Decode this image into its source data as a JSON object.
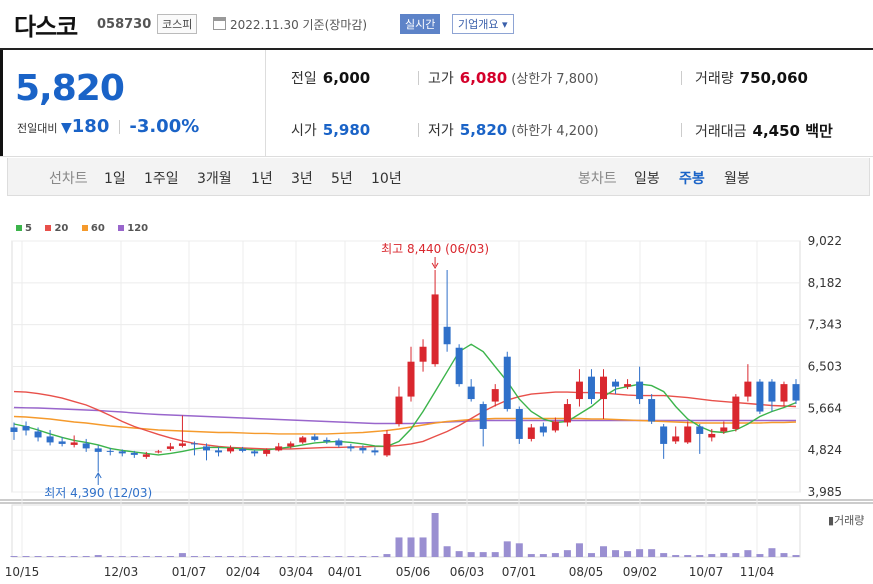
{
  "header": {
    "company_name": "다스코",
    "stock_code": "058730",
    "market_badge": "코스피",
    "date_text": "2022.11.30  기준(장마감)",
    "realtime_badge": "실시간",
    "company_info_button": "기업개요 ▾"
  },
  "summary": {
    "current_price": "5,820",
    "change_label": "전일대비",
    "change_arrow": "▼",
    "change_value": "180",
    "change_percent": "-3.00%",
    "prev_close_label": "전일",
    "prev_close": "6,000",
    "open_label": "시가",
    "open": "5,980",
    "high_label": "고가",
    "high": "6,080",
    "upper_limit": "(상한가 7,800)",
    "low_label": "저가",
    "low": "5,820",
    "lower_limit": "(하한가 4,200)",
    "volume_label": "거래량",
    "volume": "750,060",
    "trade_value_label": "거래대금",
    "trade_value": "4,450 백만"
  },
  "toolbar": {
    "line_chart_label": "선차트",
    "periods": [
      "1일",
      "1주일",
      "3개월",
      "1년",
      "3년",
      "5년",
      "10년"
    ],
    "candle_chart_label": "봉차트",
    "candle_periods": [
      "일봉",
      "주봉",
      "월봉"
    ],
    "selected_candle_period": "주봉"
  },
  "colors": {
    "ma5": "#3cb44b",
    "ma20": "#e8504a",
    "ma60": "#f59a2c",
    "ma120": "#9966cc",
    "up": "#d9272e",
    "down": "#2f70c9"
  },
  "chart_data": {
    "type": "candlestick",
    "legend": [
      "5",
      "20",
      "60",
      "120"
    ],
    "y_ticks": [
      "9,022",
      "8,182",
      "7,343",
      "6,503",
      "5,664",
      "4,824",
      "3,985"
    ],
    "ylim": [
      3985,
      9022
    ],
    "x_ticks": [
      "10/15",
      "12/03",
      "01/07",
      "02/04",
      "03/04",
      "04/01",
      "05/06",
      "06/03",
      "07/01",
      "08/05",
      "09/02",
      "10/07",
      "11/04"
    ],
    "annotations": {
      "max": "최고 8,440 (06/03)",
      "min": "최저 4,390 (12/03)"
    },
    "volume_label": "거래량",
    "candles": [
      {
        "o": 5280,
        "c": 5190,
        "h": 5380,
        "l": 5030
      },
      {
        "o": 5310,
        "c": 5220,
        "h": 5400,
        "l": 5120
      },
      {
        "o": 5200,
        "c": 5080,
        "h": 5280,
        "l": 5000
      },
      {
        "o": 5100,
        "c": 4980,
        "h": 5230,
        "l": 4920
      },
      {
        "o": 5000,
        "c": 4950,
        "h": 5090,
        "l": 4900
      },
      {
        "o": 4930,
        "c": 4980,
        "h": 5120,
        "l": 4880
      },
      {
        "o": 4960,
        "c": 4860,
        "h": 5050,
        "l": 4790
      },
      {
        "o": 4860,
        "c": 4790,
        "h": 4920,
        "l": 4390
      },
      {
        "o": 4810,
        "c": 4800,
        "h": 4870,
        "l": 4720
      },
      {
        "o": 4800,
        "c": 4760,
        "h": 4840,
        "l": 4700
      },
      {
        "o": 4770,
        "c": 4730,
        "h": 4810,
        "l": 4670
      },
      {
        "o": 4690,
        "c": 4740,
        "h": 4790,
        "l": 4650
      },
      {
        "o": 4790,
        "c": 4800,
        "h": 4830,
        "l": 4760
      },
      {
        "o": 4850,
        "c": 4900,
        "h": 4970,
        "l": 4810
      },
      {
        "o": 4910,
        "c": 4960,
        "h": 5520,
        "l": 4880
      },
      {
        "o": 4960,
        "c": 4940,
        "h": 5000,
        "l": 4720
      },
      {
        "o": 4900,
        "c": 4820,
        "h": 4960,
        "l": 4620
      },
      {
        "o": 4820,
        "c": 4780,
        "h": 4890,
        "l": 4700
      },
      {
        "o": 4800,
        "c": 4870,
        "h": 4920,
        "l": 4760
      },
      {
        "o": 4850,
        "c": 4810,
        "h": 4890,
        "l": 4780
      },
      {
        "o": 4800,
        "c": 4760,
        "h": 4830,
        "l": 4700
      },
      {
        "o": 4750,
        "c": 4830,
        "h": 4860,
        "l": 4700
      },
      {
        "o": 4820,
        "c": 4900,
        "h": 4970,
        "l": 4800
      },
      {
        "o": 4900,
        "c": 4960,
        "h": 5000,
        "l": 4860
      },
      {
        "o": 4980,
        "c": 5080,
        "h": 5110,
        "l": 4950
      },
      {
        "o": 5100,
        "c": 5030,
        "h": 5150,
        "l": 5000
      },
      {
        "o": 5030,
        "c": 5000,
        "h": 5080,
        "l": 4950
      },
      {
        "o": 5020,
        "c": 4920,
        "h": 5060,
        "l": 4880
      },
      {
        "o": 4900,
        "c": 4860,
        "h": 4950,
        "l": 4800
      },
      {
        "o": 4870,
        "c": 4820,
        "h": 4920,
        "l": 4760
      },
      {
        "o": 4820,
        "c": 4780,
        "h": 4880,
        "l": 4720
      },
      {
        "o": 4720,
        "c": 5150,
        "h": 5230,
        "l": 4690
      },
      {
        "o": 5350,
        "c": 5900,
        "h": 6100,
        "l": 5300
      },
      {
        "o": 5900,
        "c": 6600,
        "h": 6900,
        "l": 5800
      },
      {
        "o": 6600,
        "c": 6900,
        "h": 7050,
        "l": 6400
      },
      {
        "o": 6550,
        "c": 7950,
        "h": 8440,
        "l": 6500
      },
      {
        "o": 7300,
        "c": 6950,
        "h": 8440,
        "l": 6800
      },
      {
        "o": 6880,
        "c": 6150,
        "h": 6950,
        "l": 6100
      },
      {
        "o": 6100,
        "c": 5850,
        "h": 6250,
        "l": 5800
      },
      {
        "o": 5750,
        "c": 5250,
        "h": 5800,
        "l": 4900
      },
      {
        "o": 5800,
        "c": 6050,
        "h": 6150,
        "l": 5700
      },
      {
        "o": 6700,
        "c": 5650,
        "h": 6800,
        "l": 5600
      },
      {
        "o": 5650,
        "c": 5050,
        "h": 5700,
        "l": 4950
      },
      {
        "o": 5050,
        "c": 5280,
        "h": 5350,
        "l": 5000
      },
      {
        "o": 5300,
        "c": 5180,
        "h": 5380,
        "l": 5100
      },
      {
        "o": 5220,
        "c": 5400,
        "h": 5480,
        "l": 5180
      },
      {
        "o": 5380,
        "c": 5750,
        "h": 5850,
        "l": 5300
      },
      {
        "o": 5850,
        "c": 6200,
        "h": 6450,
        "l": 5700
      },
      {
        "o": 6300,
        "c": 5850,
        "h": 6450,
        "l": 5750
      },
      {
        "o": 5850,
        "c": 6300,
        "h": 6450,
        "l": 5450
      },
      {
        "o": 6200,
        "c": 6100,
        "h": 6250,
        "l": 5950
      },
      {
        "o": 6100,
        "c": 6150,
        "h": 6250,
        "l": 6050
      },
      {
        "o": 6200,
        "c": 5850,
        "h": 6500,
        "l": 5750
      },
      {
        "o": 5850,
        "c": 5400,
        "h": 5950,
        "l": 5350
      },
      {
        "o": 5300,
        "c": 4950,
        "h": 5350,
        "l": 4650
      },
      {
        "o": 5000,
        "c": 5100,
        "h": 5300,
        "l": 4950
      },
      {
        "o": 4980,
        "c": 5300,
        "h": 5400,
        "l": 4950
      },
      {
        "o": 5300,
        "c": 5150,
        "h": 5350,
        "l": 4750
      },
      {
        "o": 5080,
        "c": 5150,
        "h": 5250,
        "l": 5000
      },
      {
        "o": 5200,
        "c": 5280,
        "h": 5400,
        "l": 5150
      },
      {
        "o": 5250,
        "c": 5900,
        "h": 5950,
        "l": 5200
      },
      {
        "o": 5900,
        "c": 6200,
        "h": 6550,
        "l": 5800
      },
      {
        "o": 6200,
        "c": 5600,
        "h": 6250,
        "l": 5550
      },
      {
        "o": 6200,
        "c": 5800,
        "h": 6250,
        "l": 5600
      },
      {
        "o": 5800,
        "c": 6150,
        "h": 6200,
        "l": 5700
      },
      {
        "o": 6150,
        "c": 5820,
        "h": 6250,
        "l": 5750
      }
    ],
    "volume": [
      1,
      1,
      1,
      1,
      1,
      1,
      1,
      2,
      1,
      1,
      1,
      1,
      1,
      1,
      4,
      1,
      1,
      1,
      1,
      1,
      1,
      1,
      1,
      1,
      1,
      1,
      1,
      1,
      1,
      1,
      1,
      3,
      20,
      20,
      20,
      45,
      11,
      6,
      5,
      5,
      5,
      16,
      14,
      3,
      3,
      4,
      7,
      14,
      4,
      11,
      7,
      6,
      8,
      8,
      4,
      2,
      2,
      2,
      3,
      4,
      4,
      7,
      3,
      9,
      4,
      2
    ],
    "ma5": [
      5350,
      5300,
      5230,
      5150,
      5080,
      5020,
      4980,
      4930,
      4860,
      4820,
      4790,
      4760,
      4730,
      4760,
      4800,
      4850,
      4880,
      4880,
      4870,
      4850,
      4830,
      4830,
      4860,
      4890,
      4930,
      4970,
      4990,
      5000,
      4980,
      4950,
      4910,
      4900,
      5000,
      5250,
      5600,
      6000,
      6400,
      6800,
      6950,
      6800,
      6500,
      6200,
      5850,
      5600,
      5450,
      5380,
      5400,
      5550,
      5700,
      5900,
      6050,
      6100,
      6150,
      6120,
      6000,
      5700,
      5450,
      5300,
      5200,
      5180,
      5230,
      5350,
      5500,
      5600,
      5680,
      5780
    ],
    "ma20": [
      6000,
      5990,
      5960,
      5920,
      5870,
      5800,
      5730,
      5630,
      5520,
      5400,
      5300,
      5220,
      5140,
      5070,
      5010,
      4960,
      4930,
      4900,
      4880,
      4870,
      4860,
      4850,
      4850,
      4850,
      4860,
      4870,
      4880,
      4880,
      4890,
      4890,
      4900,
      4900,
      4920,
      4950,
      5000,
      5100,
      5200,
      5320,
      5460,
      5600,
      5720,
      5830,
      5900,
      5950,
      5970,
      5990,
      5990,
      5980,
      5980,
      5970,
      5950,
      5930,
      5920,
      5920,
      5920,
      5900,
      5880,
      5850,
      5820,
      5800,
      5780,
      5760,
      5740,
      5720,
      5710,
      5700
    ],
    "ma60": [
      5500,
      5490,
      5470,
      5450,
      5420,
      5390,
      5370,
      5340,
      5310,
      5290,
      5270,
      5250,
      5230,
      5220,
      5210,
      5200,
      5190,
      5180,
      5180,
      5170,
      5160,
      5160,
      5150,
      5150,
      5150,
      5150,
      5150,
      5160,
      5170,
      5180,
      5200,
      5220,
      5250,
      5290,
      5330,
      5370,
      5400,
      5420,
      5440,
      5450,
      5460,
      5460,
      5460,
      5460,
      5460,
      5460,
      5460,
      5460,
      5450,
      5450,
      5440,
      5430,
      5420,
      5410,
      5400,
      5390,
      5380,
      5370,
      5370,
      5370,
      5370,
      5370,
      5370,
      5380,
      5380,
      5390
    ],
    "ma120": [
      5680,
      5675,
      5670,
      5660,
      5650,
      5640,
      5630,
      5620,
      5605,
      5590,
      5570,
      5555,
      5540,
      5530,
      5520,
      5510,
      5500,
      5490,
      5480,
      5470,
      5460,
      5450,
      5440,
      5430,
      5420,
      5410,
      5400,
      5390,
      5380,
      5370,
      5360,
      5360,
      5360,
      5360,
      5370,
      5380,
      5390,
      5400,
      5410,
      5420,
      5420,
      5420,
      5420,
      5420,
      5420,
      5420,
      5420,
      5420,
      5420,
      5420,
      5420,
      5420,
      5420,
      5420,
      5420,
      5420,
      5420,
      5420,
      5420,
      5420,
      5420,
      5420,
      5420,
      5420,
      5420,
      5420
    ]
  }
}
